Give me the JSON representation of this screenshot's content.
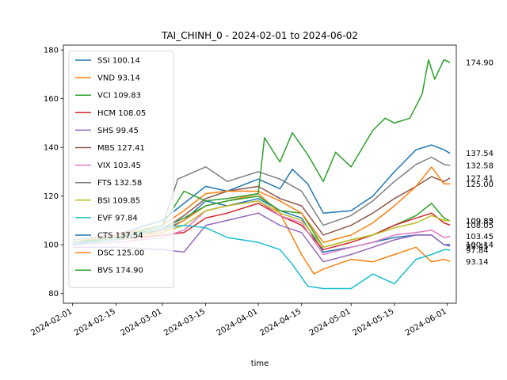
{
  "chart_data": {
    "type": "line",
    "title": "TAI_CHINH_0 - 2024-02-01 to 2024-06-02",
    "xlabel": "time",
    "ylabel": "",
    "x_range": [
      "2024-01-29",
      "2024-06-04"
    ],
    "ylim": [
      76,
      182
    ],
    "grid": false,
    "legend_position": "top-left",
    "x_ticks": [
      "2024-02-01",
      "2024-02-15",
      "2024-03-01",
      "2024-03-15",
      "2024-04-01",
      "2024-04-15",
      "2024-05-01",
      "2024-05-15",
      "2024-06-01"
    ],
    "y_ticks": [
      80,
      100,
      120,
      140,
      160,
      180
    ],
    "series": [
      {
        "name": "SSI 100.14",
        "color": "#1f77b4",
        "end_label": "100.14",
        "points": [
          [
            "2024-02-01",
            100
          ],
          [
            "2024-02-15",
            103
          ],
          [
            "2024-03-01",
            106
          ],
          [
            "2024-03-08",
            110
          ],
          [
            "2024-03-15",
            118
          ],
          [
            "2024-03-22",
            116
          ],
          [
            "2024-04-01",
            119
          ],
          [
            "2024-04-08",
            114
          ],
          [
            "2024-04-15",
            111
          ],
          [
            "2024-04-22",
            97
          ],
          [
            "2024-05-01",
            99
          ],
          [
            "2024-05-08",
            101
          ],
          [
            "2024-05-15",
            103
          ],
          [
            "2024-05-22",
            104
          ],
          [
            "2024-05-27",
            104
          ],
          [
            "2024-05-31",
            100
          ],
          [
            "2024-06-02",
            100.14
          ]
        ]
      },
      {
        "name": "VND 93.14",
        "color": "#ff7f0e",
        "end_label": "93.14",
        "points": [
          [
            "2024-02-01",
            101
          ],
          [
            "2024-02-15",
            104
          ],
          [
            "2024-03-01",
            105
          ],
          [
            "2024-03-08",
            110
          ],
          [
            "2024-03-15",
            116
          ],
          [
            "2024-03-22",
            118
          ],
          [
            "2024-04-01",
            121
          ],
          [
            "2024-04-08",
            113
          ],
          [
            "2024-04-15",
            96
          ],
          [
            "2024-04-19",
            88
          ],
          [
            "2024-04-22",
            90
          ],
          [
            "2024-05-01",
            94
          ],
          [
            "2024-05-08",
            93
          ],
          [
            "2024-05-15",
            96
          ],
          [
            "2024-05-22",
            99
          ],
          [
            "2024-05-27",
            93
          ],
          [
            "2024-05-31",
            94
          ],
          [
            "2024-06-02",
            93.14
          ]
        ]
      },
      {
        "name": "VCI 109.83",
        "color": "#2ca02c",
        "end_label": "109.83",
        "points": [
          [
            "2024-02-01",
            100
          ],
          [
            "2024-02-15",
            103
          ],
          [
            "2024-03-01",
            107
          ],
          [
            "2024-03-08",
            111
          ],
          [
            "2024-03-15",
            116
          ],
          [
            "2024-03-22",
            118
          ],
          [
            "2024-04-01",
            120
          ],
          [
            "2024-04-08",
            114
          ],
          [
            "2024-04-15",
            113
          ],
          [
            "2024-04-22",
            99
          ],
          [
            "2024-05-01",
            102
          ],
          [
            "2024-05-08",
            104
          ],
          [
            "2024-05-15",
            108
          ],
          [
            "2024-05-22",
            112
          ],
          [
            "2024-05-27",
            117
          ],
          [
            "2024-05-31",
            111
          ],
          [
            "2024-06-02",
            109.83
          ]
        ]
      },
      {
        "name": "HCM 108.05",
        "color": "#d62728",
        "end_label": "108.05",
        "points": [
          [
            "2024-02-01",
            100
          ],
          [
            "2024-02-15",
            102
          ],
          [
            "2024-03-01",
            104
          ],
          [
            "2024-03-08",
            105
          ],
          [
            "2024-03-15",
            111
          ],
          [
            "2024-03-22",
            113
          ],
          [
            "2024-04-01",
            117
          ],
          [
            "2024-04-08",
            112
          ],
          [
            "2024-04-15",
            108
          ],
          [
            "2024-04-22",
            98
          ],
          [
            "2024-05-01",
            101
          ],
          [
            "2024-05-08",
            104
          ],
          [
            "2024-05-15",
            108
          ],
          [
            "2024-05-22",
            111
          ],
          [
            "2024-05-27",
            113
          ],
          [
            "2024-05-31",
            109
          ],
          [
            "2024-06-02",
            108.05
          ]
        ]
      },
      {
        "name": "SHS 99.45",
        "color": "#9467bd",
        "end_label": "99.45",
        "points": [
          [
            "2024-02-01",
            99
          ],
          [
            "2024-02-15",
            99
          ],
          [
            "2024-03-01",
            98
          ],
          [
            "2024-03-08",
            97
          ],
          [
            "2024-03-15",
            108
          ],
          [
            "2024-03-22",
            110
          ],
          [
            "2024-04-01",
            113
          ],
          [
            "2024-04-08",
            108
          ],
          [
            "2024-04-15",
            105
          ],
          [
            "2024-04-22",
            93
          ],
          [
            "2024-05-01",
            96
          ],
          [
            "2024-05-08",
            99
          ],
          [
            "2024-05-15",
            102
          ],
          [
            "2024-05-22",
            104
          ],
          [
            "2024-05-27",
            104
          ],
          [
            "2024-05-31",
            100
          ],
          [
            "2024-06-02",
            99.45
          ]
        ]
      },
      {
        "name": "MBS 127.41",
        "color": "#8c564b",
        "end_label": "127.41",
        "points": [
          [
            "2024-02-01",
            101
          ],
          [
            "2024-02-15",
            103
          ],
          [
            "2024-03-01",
            106
          ],
          [
            "2024-03-08",
            112
          ],
          [
            "2024-03-15",
            119
          ],
          [
            "2024-03-22",
            122
          ],
          [
            "2024-04-01",
            124
          ],
          [
            "2024-04-08",
            119
          ],
          [
            "2024-04-15",
            116
          ],
          [
            "2024-04-22",
            104
          ],
          [
            "2024-05-01",
            108
          ],
          [
            "2024-05-08",
            113
          ],
          [
            "2024-05-15",
            119
          ],
          [
            "2024-05-22",
            124
          ],
          [
            "2024-05-27",
            128
          ],
          [
            "2024-05-31",
            126
          ],
          [
            "2024-06-02",
            127.41
          ]
        ]
      },
      {
        "name": "VIX 103.45",
        "color": "#e377c2",
        "end_label": "103.45",
        "points": [
          [
            "2024-02-01",
            100
          ],
          [
            "2024-02-15",
            101
          ],
          [
            "2024-03-01",
            103
          ],
          [
            "2024-03-08",
            106
          ],
          [
            "2024-03-15",
            114
          ],
          [
            "2024-03-22",
            116
          ],
          [
            "2024-04-01",
            118
          ],
          [
            "2024-04-08",
            112
          ],
          [
            "2024-04-15",
            109
          ],
          [
            "2024-04-22",
            96
          ],
          [
            "2024-05-01",
            99
          ],
          [
            "2024-05-08",
            101
          ],
          [
            "2024-05-15",
            104
          ],
          [
            "2024-05-22",
            105
          ],
          [
            "2024-05-27",
            106
          ],
          [
            "2024-05-31",
            103
          ],
          [
            "2024-06-02",
            103.45
          ]
        ]
      },
      {
        "name": "FTS 132.58",
        "color": "#7f7f7f",
        "end_label": "132.58",
        "points": [
          [
            "2024-02-01",
            102
          ],
          [
            "2024-02-15",
            104
          ],
          [
            "2024-03-01",
            108
          ],
          [
            "2024-03-06",
            127
          ],
          [
            "2024-03-15",
            132
          ],
          [
            "2024-03-22",
            126
          ],
          [
            "2024-04-01",
            130
          ],
          [
            "2024-04-08",
            127
          ],
          [
            "2024-04-15",
            122
          ],
          [
            "2024-04-22",
            108
          ],
          [
            "2024-05-01",
            112
          ],
          [
            "2024-05-08",
            118
          ],
          [
            "2024-05-15",
            126
          ],
          [
            "2024-05-22",
            133
          ],
          [
            "2024-05-27",
            136
          ],
          [
            "2024-05-31",
            133
          ],
          [
            "2024-06-02",
            132.58
          ]
        ]
      },
      {
        "name": "BSI 109.85",
        "color": "#bcbd22",
        "end_label": "109.85",
        "points": [
          [
            "2024-02-01",
            100
          ],
          [
            "2024-02-15",
            102
          ],
          [
            "2024-03-01",
            105
          ],
          [
            "2024-03-08",
            108
          ],
          [
            "2024-03-15",
            114
          ],
          [
            "2024-03-22",
            116
          ],
          [
            "2024-04-01",
            118
          ],
          [
            "2024-04-08",
            113
          ],
          [
            "2024-04-15",
            110
          ],
          [
            "2024-04-22",
            99
          ],
          [
            "2024-05-01",
            102
          ],
          [
            "2024-05-08",
            104
          ],
          [
            "2024-05-15",
            107
          ],
          [
            "2024-05-22",
            109
          ],
          [
            "2024-05-27",
            112
          ],
          [
            "2024-05-31",
            110
          ],
          [
            "2024-06-02",
            109.85
          ]
        ]
      },
      {
        "name": "EVF 97.84",
        "color": "#17becf",
        "end_label": "97.84",
        "points": [
          [
            "2024-02-01",
            100
          ],
          [
            "2024-02-15",
            102
          ],
          [
            "2024-03-01",
            107
          ],
          [
            "2024-03-08",
            108
          ],
          [
            "2024-03-15",
            107
          ],
          [
            "2024-03-22",
            103
          ],
          [
            "2024-04-01",
            101
          ],
          [
            "2024-04-08",
            98
          ],
          [
            "2024-04-12",
            92
          ],
          [
            "2024-04-17",
            83
          ],
          [
            "2024-04-22",
            82
          ],
          [
            "2024-05-01",
            82
          ],
          [
            "2024-05-08",
            88
          ],
          [
            "2024-05-15",
            84
          ],
          [
            "2024-05-22",
            94
          ],
          [
            "2024-05-27",
            96
          ],
          [
            "2024-05-31",
            98
          ],
          [
            "2024-06-02",
            97.84
          ]
        ]
      },
      {
        "name": "CTS 137.54",
        "color": "#1f77b4",
        "end_label": "137.54",
        "points": [
          [
            "2024-02-01",
            100
          ],
          [
            "2024-02-15",
            104
          ],
          [
            "2024-03-01",
            110
          ],
          [
            "2024-03-08",
            117
          ],
          [
            "2024-03-15",
            124
          ],
          [
            "2024-03-22",
            122
          ],
          [
            "2024-04-01",
            127
          ],
          [
            "2024-04-08",
            123
          ],
          [
            "2024-04-12",
            131
          ],
          [
            "2024-04-17",
            125
          ],
          [
            "2024-04-22",
            113
          ],
          [
            "2024-05-01",
            114
          ],
          [
            "2024-05-08",
            120
          ],
          [
            "2024-05-15",
            130
          ],
          [
            "2024-05-22",
            139
          ],
          [
            "2024-05-27",
            141
          ],
          [
            "2024-05-31",
            139
          ],
          [
            "2024-06-02",
            137.54
          ]
        ]
      },
      {
        "name": "DSC 125.00",
        "color": "#ff7f0e",
        "end_label": "125.00",
        "points": [
          [
            "2024-02-01",
            101
          ],
          [
            "2024-02-15",
            104
          ],
          [
            "2024-03-01",
            108
          ],
          [
            "2024-03-08",
            114
          ],
          [
            "2024-03-15",
            121
          ],
          [
            "2024-03-22",
            122
          ],
          [
            "2024-04-01",
            122
          ],
          [
            "2024-04-08",
            118
          ],
          [
            "2024-04-15",
            113
          ],
          [
            "2024-04-22",
            101
          ],
          [
            "2024-05-01",
            104
          ],
          [
            "2024-05-08",
            109
          ],
          [
            "2024-05-15",
            116
          ],
          [
            "2024-05-22",
            124
          ],
          [
            "2024-05-27",
            132
          ],
          [
            "2024-05-31",
            125
          ],
          [
            "2024-06-02",
            125.0
          ]
        ]
      },
      {
        "name": "BVS 174.90",
        "color": "#2ca02c",
        "end_label": "174.90",
        "points": [
          [
            "2024-02-01",
            101
          ],
          [
            "2024-02-15",
            103
          ],
          [
            "2024-03-01",
            108
          ],
          [
            "2024-03-08",
            122
          ],
          [
            "2024-03-15",
            118
          ],
          [
            "2024-03-22",
            119
          ],
          [
            "2024-04-01",
            121
          ],
          [
            "2024-04-03",
            144
          ],
          [
            "2024-04-08",
            134
          ],
          [
            "2024-04-12",
            146
          ],
          [
            "2024-04-17",
            137
          ],
          [
            "2024-04-22",
            126
          ],
          [
            "2024-04-26",
            138
          ],
          [
            "2024-05-01",
            132
          ],
          [
            "2024-05-08",
            147
          ],
          [
            "2024-05-12",
            152
          ],
          [
            "2024-05-15",
            150
          ],
          [
            "2024-05-20",
            152
          ],
          [
            "2024-05-24",
            162
          ],
          [
            "2024-05-26",
            176
          ],
          [
            "2024-05-28",
            168
          ],
          [
            "2024-05-31",
            176
          ],
          [
            "2024-06-02",
            174.9
          ]
        ]
      }
    ]
  }
}
